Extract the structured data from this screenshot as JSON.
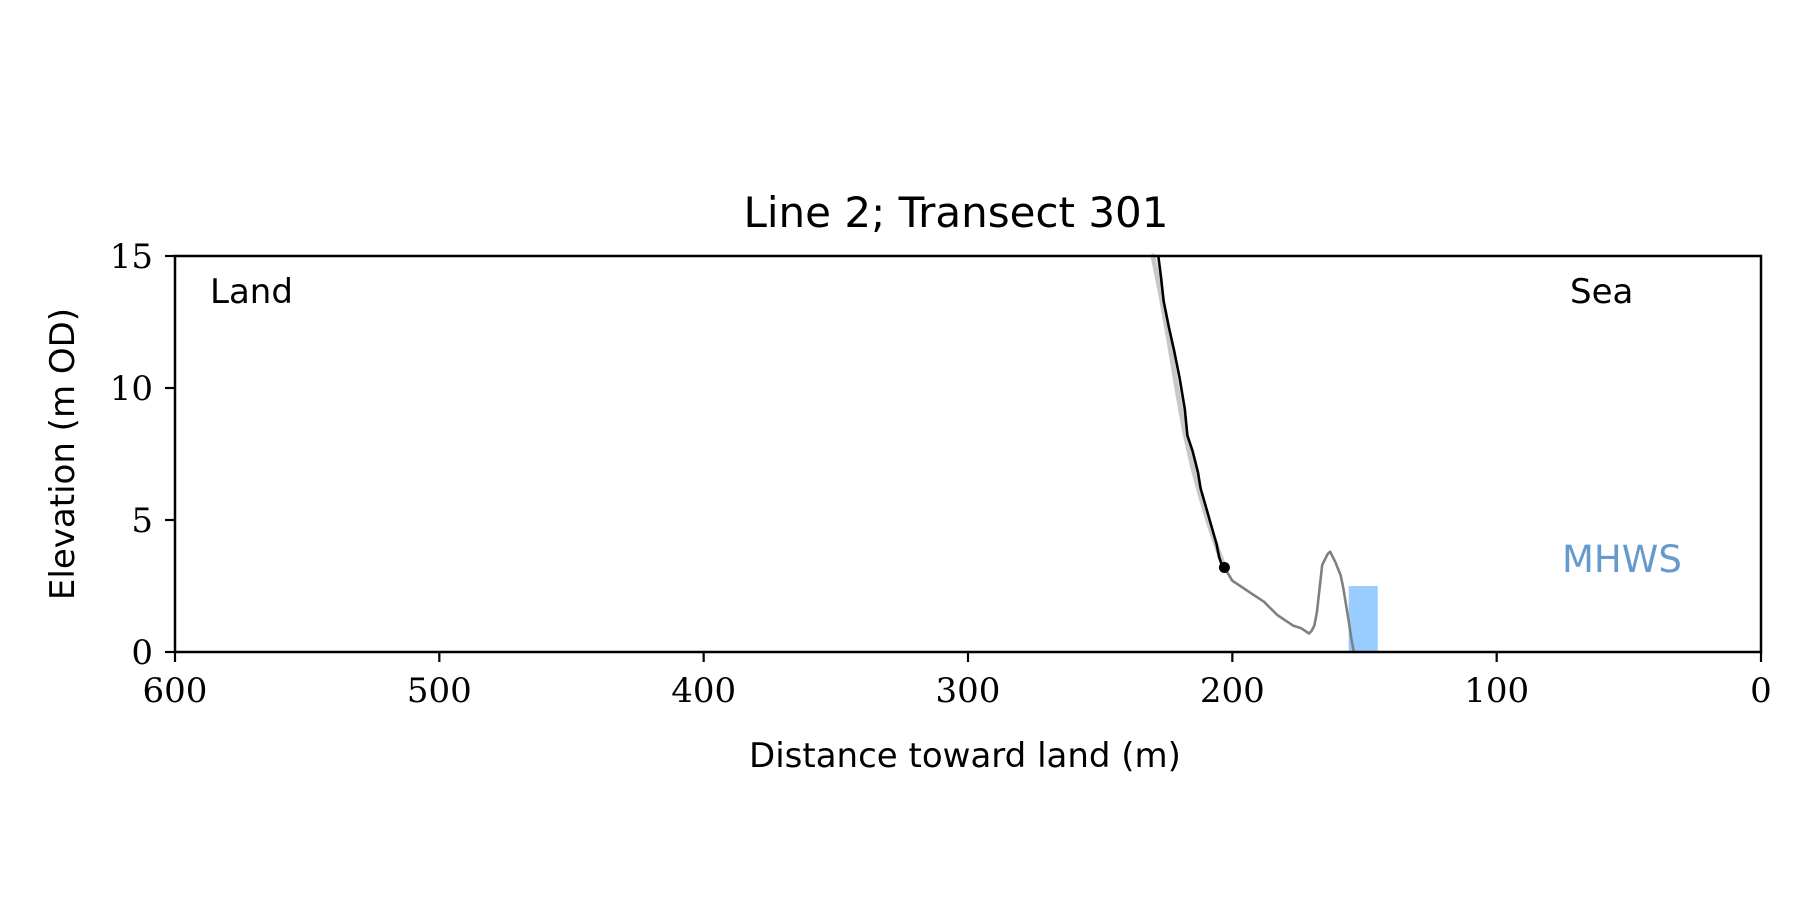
{
  "chart_data": {
    "type": "line",
    "title": "Line 2; Transect 301",
    "xlabel": "Distance toward land (m)",
    "ylabel": "Elevation (m OD)",
    "xlim": [
      600,
      0
    ],
    "ylim": [
      0,
      15
    ],
    "x_inverted": true,
    "xticks": [
      "600",
      "500",
      "400",
      "300",
      "200",
      "100",
      "0"
    ],
    "yticks": [
      "0",
      "5",
      "10",
      "15"
    ],
    "grid": false,
    "annotations": {
      "land": "Land",
      "sea": "Sea",
      "mhws": "MHWS"
    },
    "colors": {
      "cliff_profile": "#000000",
      "previous_profile": "#c8c8c8",
      "beach_profile": "#808080",
      "mhws": "#99ccff",
      "mhws_text": "#6699cc"
    },
    "series": [
      {
        "role": "previous-profile",
        "x": [
          230,
          227,
          224,
          221,
          218,
          215,
          212,
          209,
          206,
          203
        ],
        "y": [
          15.0,
          13.5,
          11.8,
          10.0,
          8.3,
          7.0,
          5.9,
          4.9,
          4.0,
          3.2
        ]
      },
      {
        "role": "cliff-profile",
        "x": [
          228,
          227,
          226,
          224,
          222,
          220,
          218,
          217,
          215,
          213,
          212,
          210,
          208,
          206,
          205,
          204,
          203
        ],
        "y": [
          15.0,
          14.2,
          13.3,
          12.3,
          11.4,
          10.4,
          9.2,
          8.2,
          7.6,
          6.8,
          6.2,
          5.5,
          4.8,
          4.1,
          3.6,
          3.3,
          3.2
        ]
      },
      {
        "role": "beach-profile",
        "x": [
          203,
          200,
          197,
          194,
          191,
          188,
          186,
          183,
          180,
          177,
          174,
          171,
          170,
          169,
          168,
          166,
          164,
          163,
          161,
          159,
          158,
          157,
          156,
          155,
          154
        ],
        "y": [
          3.2,
          2.7,
          2.5,
          2.3,
          2.1,
          1.9,
          1.7,
          1.4,
          1.2,
          1.0,
          0.9,
          0.7,
          0.8,
          1.0,
          1.5,
          3.3,
          3.7,
          3.8,
          3.4,
          2.9,
          2.4,
          1.8,
          1.2,
          0.5,
          0.0
        ]
      }
    ],
    "marker": {
      "x": 203,
      "y": 3.2
    },
    "mhws_band": {
      "x_from": 156,
      "x_to": 145,
      "y_top": 2.5
    }
  }
}
